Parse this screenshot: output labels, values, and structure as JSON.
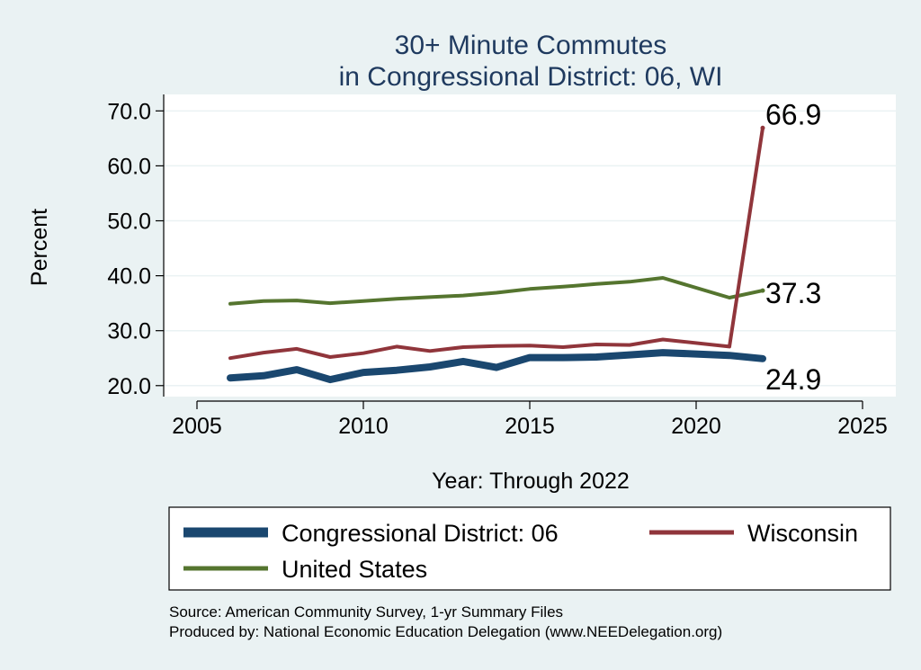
{
  "chart_data": {
    "type": "line",
    "title_line1": "30+ Minute Commutes",
    "title_line2": "in Congressional District:  06, WI",
    "xlabel": "Year: Through 2022",
    "ylabel": "Percent",
    "xlim": [
      2004,
      2026
    ],
    "ylim": [
      18,
      73
    ],
    "xticks": [
      2005,
      2010,
      2015,
      2020,
      2025
    ],
    "yticks": [
      20.0,
      30.0,
      40.0,
      50.0,
      60.0,
      70.0
    ],
    "ytick_labels": [
      "20.0",
      "30.0",
      "40.0",
      "50.0",
      "60.0",
      "70.0"
    ],
    "x": [
      2006,
      2007,
      2008,
      2009,
      2010,
      2011,
      2012,
      2013,
      2014,
      2015,
      2016,
      2017,
      2018,
      2019,
      2021,
      2022
    ],
    "series": [
      {
        "name": "Congressional District:  06",
        "color": "#1a476f",
        "values": [
          21.4,
          21.8,
          22.9,
          21.1,
          22.4,
          22.8,
          23.4,
          24.4,
          23.3,
          25.1,
          25.1,
          25.2,
          25.6,
          26.0,
          25.5,
          24.9
        ],
        "end_label": "24.9"
      },
      {
        "name": "Wisconsin",
        "color": "#90353b",
        "values": [
          25.0,
          26.0,
          26.7,
          25.2,
          25.9,
          27.1,
          26.3,
          27.0,
          27.2,
          27.3,
          27.0,
          27.5,
          27.4,
          28.4,
          27.1,
          66.9
        ],
        "end_label": "66.9"
      },
      {
        "name": "United States",
        "color": "#55752f",
        "values": [
          34.9,
          35.4,
          35.5,
          35.0,
          35.4,
          35.8,
          36.1,
          36.4,
          36.9,
          37.6,
          38.0,
          38.5,
          38.9,
          39.6,
          36.0,
          37.3
        ],
        "end_label": "37.3"
      }
    ],
    "legend": [
      "Congressional District:  06",
      "Wisconsin",
      "United States"
    ],
    "legend_position": "bottom",
    "grid": true
  },
  "notes": {
    "source": "Source: American Community Survey, 1-yr Summary Files",
    "produced": "Produced by: National Economic Education Delegation (www.NEEDelegation.org)"
  }
}
